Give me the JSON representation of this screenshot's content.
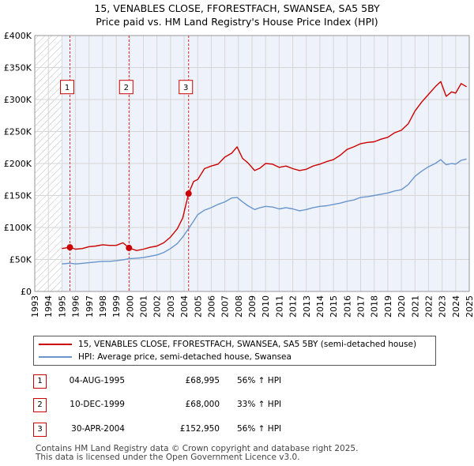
{
  "header": {
    "title": "15, VENABLES CLOSE, FFORESTFACH, SWANSEA, SA5 5BY",
    "subtitle": "Price paid vs. HM Land Registry's House Price Index (HPI)"
  },
  "colors": {
    "property": "#cc0000",
    "hpi": "#6a95cc",
    "grid": "#d6d6d6",
    "plot_bg": "#edf2fb",
    "hatch": "#bbbbbb",
    "marker_box": "#cc0000"
  },
  "chart_data": {
    "type": "line",
    "title": "15, VENABLES CLOSE, FFORESTFACH, SWANSEA, SA5 5BY",
    "subtitle": "Price paid vs. HM Land Registry's House Price Index (HPI)",
    "xlabel": "",
    "ylabel": "",
    "xlim": [
      1993,
      2025
    ],
    "ylim": [
      0,
      400000
    ],
    "y_ticks": [
      0,
      50000,
      100000,
      150000,
      200000,
      250000,
      300000,
      350000,
      400000
    ],
    "y_tick_labels": [
      "£0",
      "£50K",
      "£100K",
      "£150K",
      "£200K",
      "£250K",
      "£300K",
      "£350K",
      "£400K"
    ],
    "x_ticks": [
      1993,
      1994,
      1995,
      1996,
      1997,
      1998,
      1999,
      2000,
      2001,
      2002,
      2003,
      2004,
      2005,
      2006,
      2007,
      2008,
      2009,
      2010,
      2011,
      2012,
      2013,
      2014,
      2015,
      2016,
      2017,
      2018,
      2019,
      2020,
      2021,
      2022,
      2023,
      2024,
      2025
    ],
    "x_tick_labels": [
      "1993",
      "1994",
      "1995",
      "1996",
      "1997",
      "1998",
      "1999",
      "2000",
      "2001",
      "2002",
      "2003",
      "2004",
      "2005",
      "2006",
      "2007",
      "2008",
      "2009",
      "2010",
      "2011",
      "2012",
      "2013",
      "2014",
      "2015",
      "2016",
      "2017",
      "2018",
      "2019",
      "2020",
      "2021",
      "2022",
      "2023",
      "2024",
      "2025"
    ],
    "grid": true,
    "hatched_range": [
      1993,
      1995
    ],
    "series": [
      {
        "name": "15, VENABLES CLOSE, FFORESTFACH, SWANSEA, SA5 5BY (semi-detached house)",
        "x": [
          1995.0,
          1995.59,
          1996.0,
          1996.5,
          1997.0,
          1997.5,
          1998.0,
          1998.5,
          1999.0,
          1999.5,
          1999.94,
          2000.5,
          2001.0,
          2001.5,
          2002.0,
          2002.5,
          2003.0,
          2003.5,
          2003.9,
          2004.33,
          2004.7,
          2005.0,
          2005.5,
          2006.0,
          2006.5,
          2007.0,
          2007.5,
          2007.9,
          2008.3,
          2008.7,
          2009.2,
          2009.6,
          2010.0,
          2010.5,
          2011.0,
          2011.5,
          2012.0,
          2012.5,
          2013.0,
          2013.5,
          2014.0,
          2014.5,
          2015.0,
          2015.5,
          2016.0,
          2016.5,
          2017.0,
          2017.5,
          2018.0,
          2018.5,
          2019.0,
          2019.5,
          2020.0,
          2020.5,
          2021.0,
          2021.5,
          2022.0,
          2022.5,
          2022.9,
          2023.3,
          2023.7,
          2024.0,
          2024.4,
          2024.8
        ],
        "values": [
          67000,
          68995,
          66000,
          67000,
          70000,
          71000,
          73000,
          72000,
          72000,
          76000,
          68000,
          64000,
          66000,
          69000,
          71000,
          76000,
          85000,
          98000,
          115000,
          152950,
          172000,
          175000,
          192000,
          196000,
          199000,
          210000,
          216000,
          226000,
          208000,
          201000,
          189000,
          193000,
          200000,
          199000,
          194000,
          196000,
          192000,
          189000,
          191000,
          196000,
          199000,
          203000,
          206000,
          213000,
          222000,
          226000,
          231000,
          233000,
          234000,
          238000,
          241000,
          248000,
          252000,
          262000,
          282000,
          296000,
          308000,
          320000,
          328000,
          305000,
          312000,
          310000,
          325000,
          320000
        ]
      },
      {
        "name": "HPI: Average price, semi-detached house, Swansea",
        "x": [
          1995.0,
          1995.59,
          1996.0,
          1996.5,
          1997.0,
          1997.5,
          1998.0,
          1998.5,
          1999.0,
          1999.5,
          1999.94,
          2000.5,
          2001.0,
          2001.5,
          2002.0,
          2002.5,
          2003.0,
          2003.5,
          2003.9,
          2004.33,
          2004.7,
          2005.0,
          2005.5,
          2006.0,
          2006.5,
          2007.0,
          2007.5,
          2007.9,
          2008.3,
          2008.7,
          2009.2,
          2009.6,
          2010.0,
          2010.5,
          2011.0,
          2011.5,
          2012.0,
          2012.5,
          2013.0,
          2013.5,
          2014.0,
          2014.5,
          2015.0,
          2015.5,
          2016.0,
          2016.5,
          2017.0,
          2017.5,
          2018.0,
          2018.5,
          2019.0,
          2019.5,
          2020.0,
          2020.5,
          2021.0,
          2021.5,
          2022.0,
          2022.5,
          2022.9,
          2023.3,
          2023.7,
          2024.0,
          2024.4,
          2024.8
        ],
        "values": [
          43000,
          44200,
          43000,
          44000,
          45000,
          46000,
          47000,
          47000,
          48000,
          49500,
          51100,
          52000,
          53000,
          55000,
          57000,
          61000,
          67000,
          75000,
          85000,
          98100,
          110000,
          120000,
          127000,
          131000,
          136000,
          140000,
          146000,
          147000,
          140000,
          134000,
          128000,
          131000,
          133000,
          132000,
          129000,
          131000,
          129000,
          126000,
          128000,
          131000,
          133000,
          134000,
          136000,
          138000,
          141000,
          143000,
          147000,
          148000,
          150000,
          152000,
          154000,
          157000,
          159000,
          167000,
          180000,
          188000,
          195000,
          200000,
          206000,
          198000,
          200000,
          199000,
          205000,
          207000
        ]
      }
    ],
    "sales": [
      {
        "label": "1",
        "x": 1995.59,
        "value": 68995
      },
      {
        "label": "2",
        "x": 1999.94,
        "value": 68000
      },
      {
        "label": "3",
        "x": 2004.33,
        "value": 152950
      }
    ]
  },
  "legend": {
    "property_label": "15, VENABLES CLOSE, FFORESTFACH, SWANSEA, SA5 5BY (semi-detached house)",
    "hpi_label": "HPI: Average price, semi-detached house, Swansea"
  },
  "sales_table": [
    {
      "badge": "1",
      "date": "04-AUG-1995",
      "price": "£68,995",
      "hpi": "56% ↑ HPI"
    },
    {
      "badge": "2",
      "date": "10-DEC-1999",
      "price": "£68,000",
      "hpi": "33% ↑ HPI"
    },
    {
      "badge": "3",
      "date": "30-APR-2004",
      "price": "£152,950",
      "hpi": "56% ↑ HPI"
    }
  ],
  "footer": {
    "line1": "Contains HM Land Registry data © Crown copyright and database right 2025.",
    "line2": "This data is licensed under the Open Government Licence v3.0."
  }
}
